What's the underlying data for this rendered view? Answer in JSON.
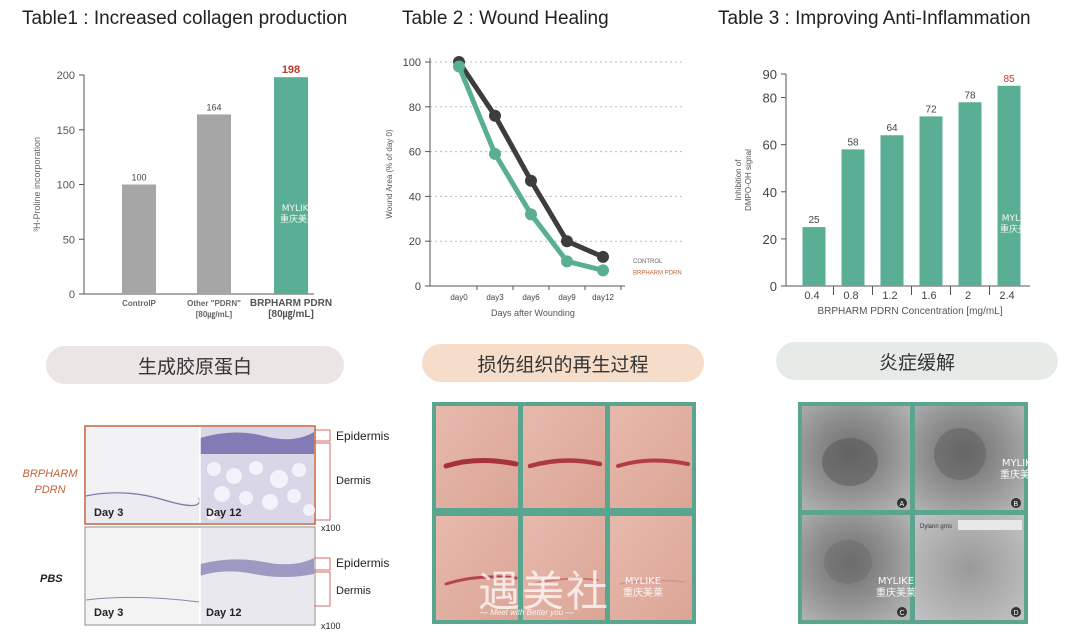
{
  "panel1": {
    "title": "Table1 : Increased collagen production",
    "banner": "生成胶原蛋白",
    "row_labels": [
      "BRPHARM",
      "PDRN",
      "PBS"
    ],
    "days": [
      "Day 3",
      "Day 12",
      "Day 3",
      "Day 12"
    ],
    "layers": [
      "Epidermis",
      "Dermis",
      "Epidermis",
      "Dermis"
    ],
    "magnification": [
      "x100",
      "x100"
    ]
  },
  "panel2": {
    "title": "Table 2 : Wound Healing",
    "banner": "损伤组织的再生过程",
    "watermark_logo": "遇美社",
    "watermark_sub": "— Meet with Better you —"
  },
  "panel3": {
    "title": "Table 3 : Improving Anti-Inflammation",
    "banner": "炎症缓解",
    "photo_letters": [
      "A",
      "B",
      "C",
      "D"
    ],
    "ruler_text": "Dylann grns"
  },
  "watermark": {
    "brand": "MYLIKE",
    "cn": "重庆美莱"
  },
  "colors": {
    "gray_bar": "#a6a6a6",
    "teal": "#5aae93",
    "highlight": "#c0392b",
    "dark_line": "#3d3d3d",
    "pill1": "#ece5e5",
    "pill2": "#f6ddc9",
    "pill3": "#e6ebe8"
  },
  "chart_data": [
    {
      "type": "bar",
      "title": "Table1 : Increased collagen production",
      "ylabel": "³H-Proline incorporation",
      "xlabel": "",
      "categories": [
        "ControlP",
        "Other \"PDRN\"\n[80㎍/mL]",
        "BRPHARM PDRN\n[80㎍/mL]"
      ],
      "category_lines": [
        [
          "ControlP"
        ],
        [
          "Other \"PDRN\"",
          "[80㎍/mL]"
        ],
        [
          "BRPHARM PDRN",
          "[80㎍/mL]"
        ]
      ],
      "values": [
        100,
        164,
        198
      ],
      "value_labels": [
        "100",
        "164",
        "198"
      ],
      "ylim": [
        0,
        200
      ],
      "yticks": [
        0,
        50,
        100,
        150,
        200
      ],
      "grid": false
    },
    {
      "type": "line",
      "title": "Table 2 : Wound Healing",
      "xlabel": "Days after Wounding",
      "ylabel": "Wound Area (% of day 0)",
      "categories": [
        "day0",
        "day3",
        "day6",
        "day9",
        "day12"
      ],
      "series": [
        {
          "name": "CONTROL",
          "values": [
            100,
            76,
            47,
            20,
            13
          ]
        },
        {
          "name": "BRPHARM PDRN",
          "values": [
            98,
            59,
            32,
            11,
            7
          ]
        }
      ],
      "ylim": [
        0,
        100
      ],
      "yticks": [
        0,
        20,
        40,
        60,
        80,
        100
      ],
      "grid": true,
      "legend": "right"
    },
    {
      "type": "bar",
      "title": "Table 3 : Improving Anti-Inflammation",
      "xlabel": "BRPHARM PDRN Concentration [mg/mL]",
      "ylabel": "Inhibition of DMPO-OH signal",
      "ylabel_lines": [
        "Inhibition of",
        "DMPO-OH signal"
      ],
      "categories": [
        "0.4",
        "0.8",
        "1.2",
        "1.6",
        "2",
        "2.4"
      ],
      "values": [
        25,
        58,
        64,
        72,
        78,
        85
      ],
      "value_labels": [
        "25",
        "58",
        "64",
        "72",
        "78",
        "85"
      ],
      "ylim": [
        0,
        90
      ],
      "yticks": [
        0,
        20,
        40,
        60,
        80,
        90
      ],
      "grid": false
    }
  ]
}
